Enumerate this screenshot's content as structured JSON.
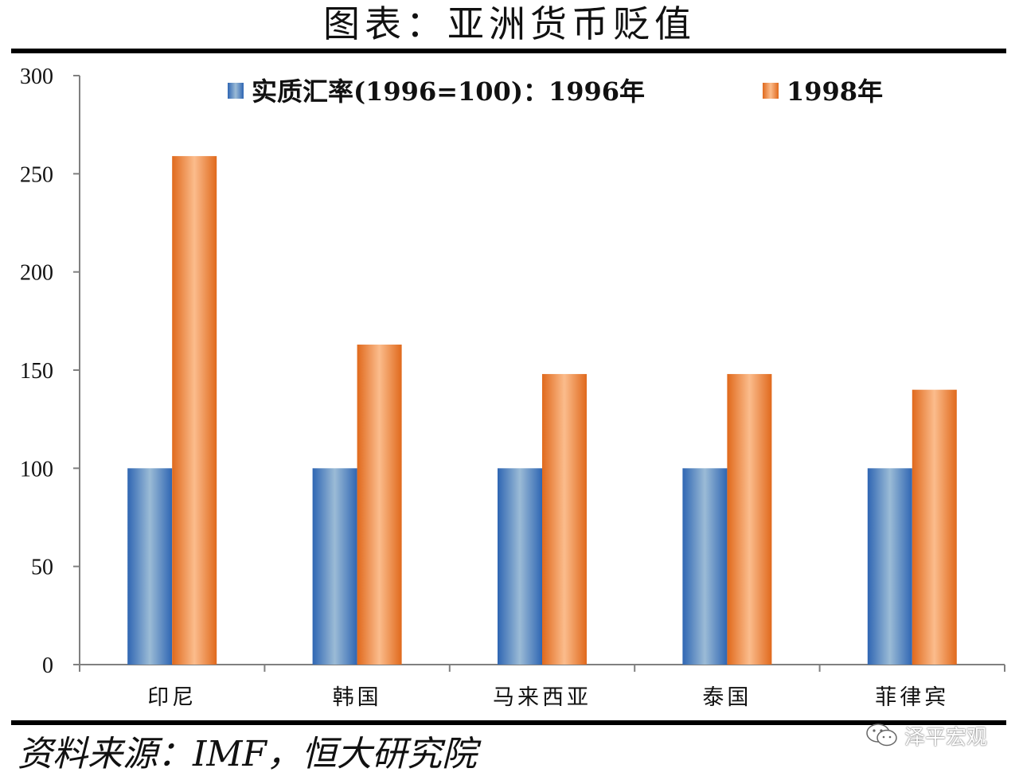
{
  "title": "图表：亚洲货币贬值",
  "source": "资料来源：IMF，恒大研究院",
  "watermark": {
    "text": "泽平宏观",
    "icon": "wechat-icon"
  },
  "colors": {
    "series_1996": "#4f81bd",
    "series_1998": "#f79646",
    "axis": "#808080"
  },
  "chart_data": {
    "type": "bar",
    "title": "",
    "xlabel": "",
    "ylabel": "",
    "ylim": [
      0,
      300
    ],
    "yticks": [
      0,
      50,
      100,
      150,
      200,
      250,
      300
    ],
    "grid": false,
    "legend_position": "top",
    "categories": [
      "印尼",
      "韩国",
      "马来西亚",
      "泰国",
      "菲律宾"
    ],
    "series": [
      {
        "name": "实质汇率(1996=100)：1996年",
        "values": [
          100,
          100,
          100,
          100,
          100
        ]
      },
      {
        "name": "1998年",
        "values": [
          259,
          163,
          148,
          148,
          140
        ]
      }
    ]
  }
}
